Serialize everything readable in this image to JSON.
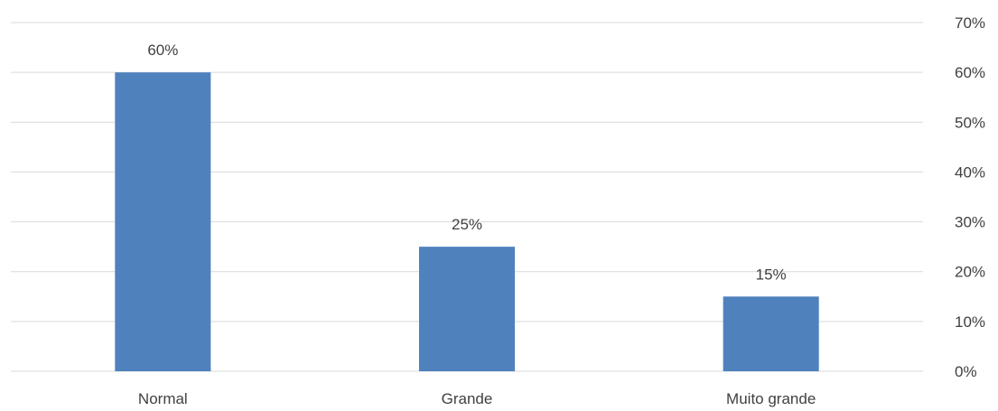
{
  "chart_data": {
    "type": "bar",
    "categories": [
      "Normal",
      "Grande",
      "Muito grande"
    ],
    "values": [
      60,
      25,
      15
    ],
    "data_labels": [
      "60%",
      "25%",
      "15%"
    ],
    "title": "",
    "xlabel": "",
    "ylabel": "",
    "ylim": [
      0,
      70
    ],
    "y_ticks": [
      0,
      10,
      20,
      30,
      40,
      50,
      60,
      70
    ],
    "y_tick_labels": [
      "0%",
      "10%",
      "20%",
      "30%",
      "40%",
      "50%",
      "60%",
      "70%"
    ],
    "y_axis_position": "right",
    "grid": true,
    "legend": "none",
    "bar_color": "#4f81bd"
  }
}
